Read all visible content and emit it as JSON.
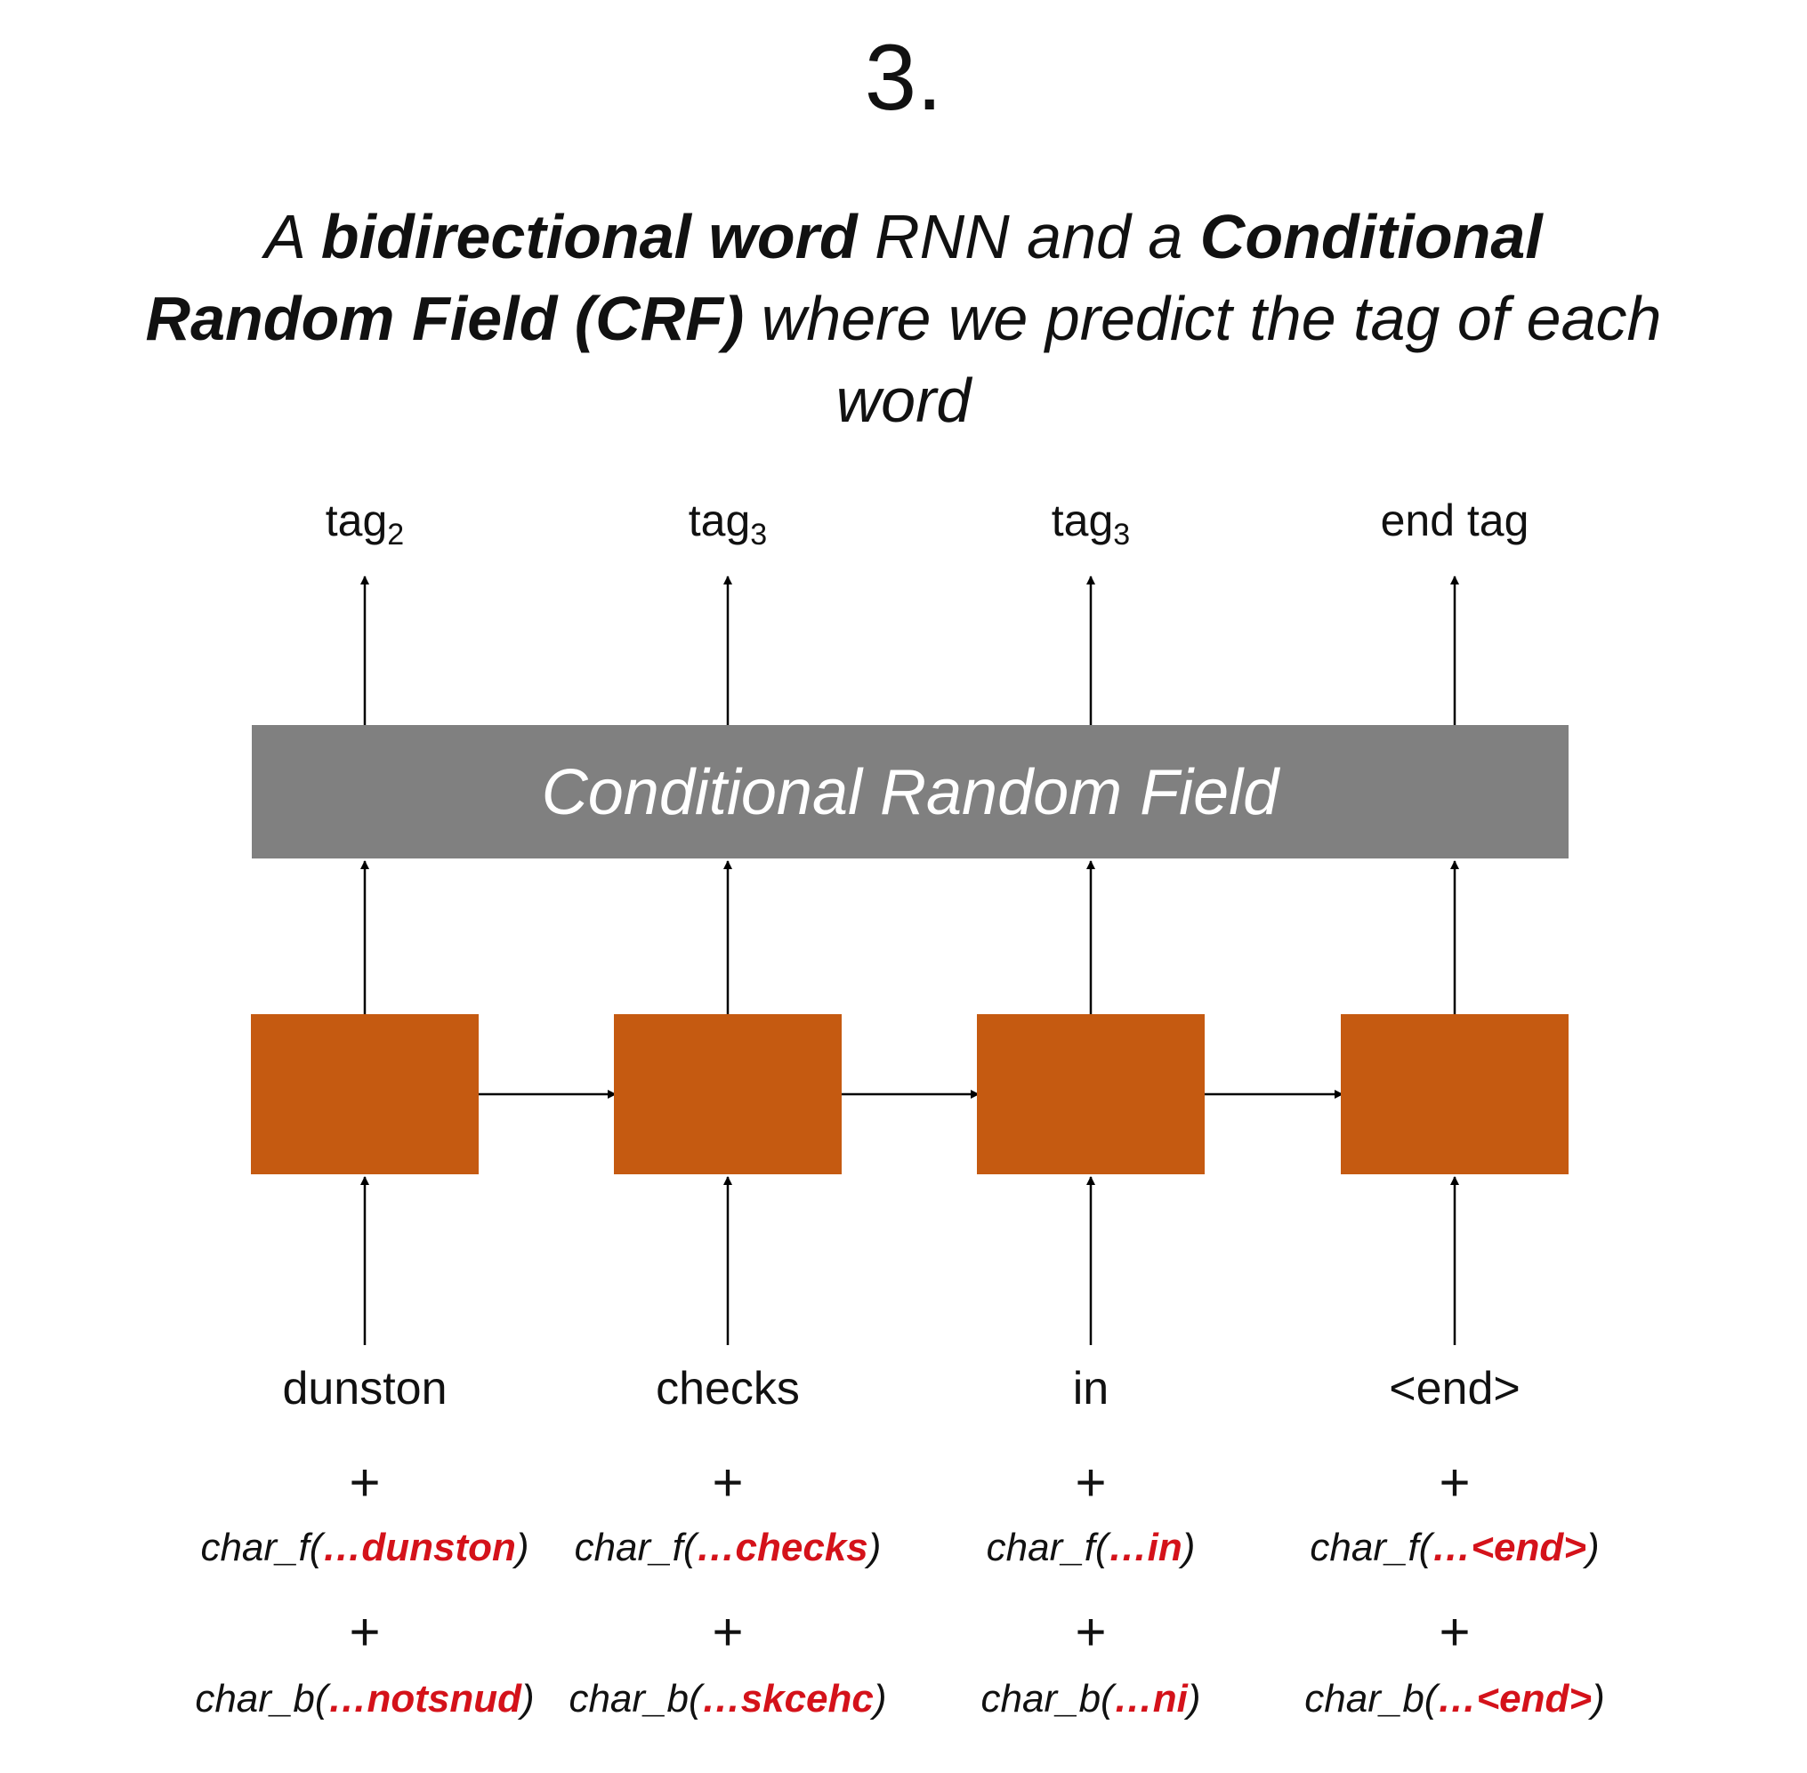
{
  "step": "3.",
  "subtitle": {
    "part1": "A ",
    "part2": "bidirectional word",
    "part3": " RNN and a ",
    "part4": "Conditional Random Field (CRF)",
    "part5": " where we predict the tag of each word"
  },
  "crf_label": "Conditional Random Field",
  "colors": {
    "rnn_box": "#c55a11",
    "crf_box": "#808080",
    "highlight": "#d4121a"
  },
  "columns": [
    {
      "tag": "tag",
      "tag_sub": "2",
      "word": "dunston",
      "char_f_prefix": "char_f(",
      "char_f_word": "…dunston",
      "char_f_suffix": ")",
      "char_b_prefix": "char_b(",
      "char_b_word": "…notsnud",
      "char_b_suffix": ")"
    },
    {
      "tag": "tag",
      "tag_sub": "3",
      "word": "checks",
      "char_f_prefix": "char_f(",
      "char_f_word": "…checks",
      "char_f_suffix": ")",
      "char_b_prefix": "char_b(",
      "char_b_word": "…skcehc",
      "char_b_suffix": ")"
    },
    {
      "tag": "tag",
      "tag_sub": "3",
      "word": "in",
      "char_f_prefix": "char_f(",
      "char_f_word": "…in",
      "char_f_suffix": ")",
      "char_b_prefix": "char_b(",
      "char_b_word": "…ni",
      "char_b_suffix": ")"
    },
    {
      "tag": "end tag",
      "tag_sub": "",
      "word": "<end>",
      "char_f_prefix": "char_f(",
      "char_f_word": "…<end>",
      "char_f_suffix": ")",
      "char_b_prefix": "char_b(",
      "char_b_word": "…<end>",
      "char_b_suffix": ")"
    }
  ],
  "plus_sign": "+"
}
